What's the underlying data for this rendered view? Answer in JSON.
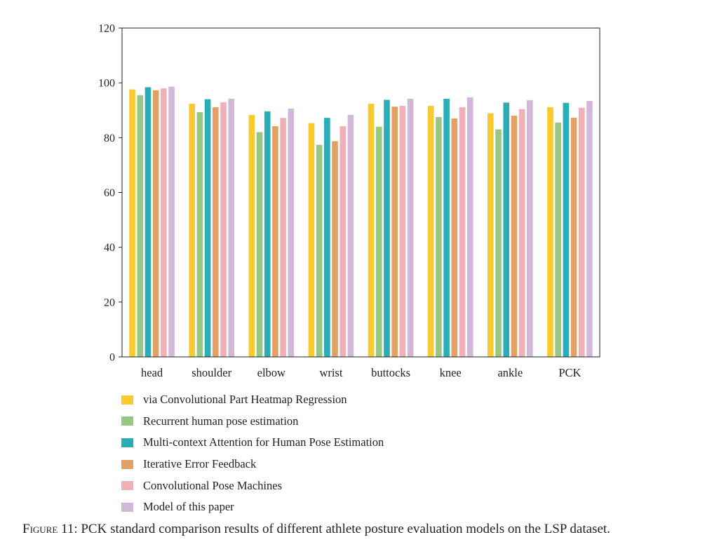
{
  "chart_data": {
    "type": "bar",
    "categories": [
      "head",
      "shoulder",
      "elbow",
      "wrist",
      "buttocks",
      "knee",
      "ankle",
      "PCK"
    ],
    "series": [
      {
        "name": "via Convolutional Part Heatmap Regression",
        "color": "#f7cb2f",
        "values": [
          97.6,
          92.4,
          88.3,
          85.3,
          92.4,
          91.6,
          88.9,
          91.1
        ]
      },
      {
        "name": "Recurrent human pose estimation",
        "color": "#98c683",
        "values": [
          95.5,
          89.3,
          82.0,
          77.4,
          84.0,
          87.5,
          83.0,
          85.5
        ]
      },
      {
        "name": "Multi-context Attention for Human Pose Estimation",
        "color": "#29adb7",
        "values": [
          98.4,
          94.0,
          89.6,
          87.2,
          93.8,
          94.2,
          92.8,
          92.7
        ]
      },
      {
        "name": "Iterative Error Feedback",
        "color": "#e4a062",
        "values": [
          97.3,
          91.1,
          84.2,
          78.7,
          91.3,
          87.0,
          88.0,
          87.3
        ]
      },
      {
        "name": "Convolutional Pose Machines",
        "color": "#f0b0b6",
        "values": [
          98.0,
          92.9,
          87.2,
          84.2,
          91.6,
          91.1,
          90.4,
          90.9
        ]
      },
      {
        "name": "Model of this paper",
        "color": "#d2b8d8",
        "values": [
          98.6,
          94.2,
          90.6,
          88.3,
          94.2,
          94.7,
          93.7,
          93.4
        ]
      }
    ],
    "ylim": [
      0,
      120
    ],
    "yticks": [
      0,
      20,
      40,
      60,
      80,
      100,
      120
    ],
    "grid": false,
    "legend_position": "bottom-left",
    "title": "",
    "xlabel": "",
    "ylabel": ""
  },
  "caption": {
    "label": "Figure 11:",
    "text": " PCK standard comparison results of different athlete posture evaluation models on the LSP dataset."
  }
}
